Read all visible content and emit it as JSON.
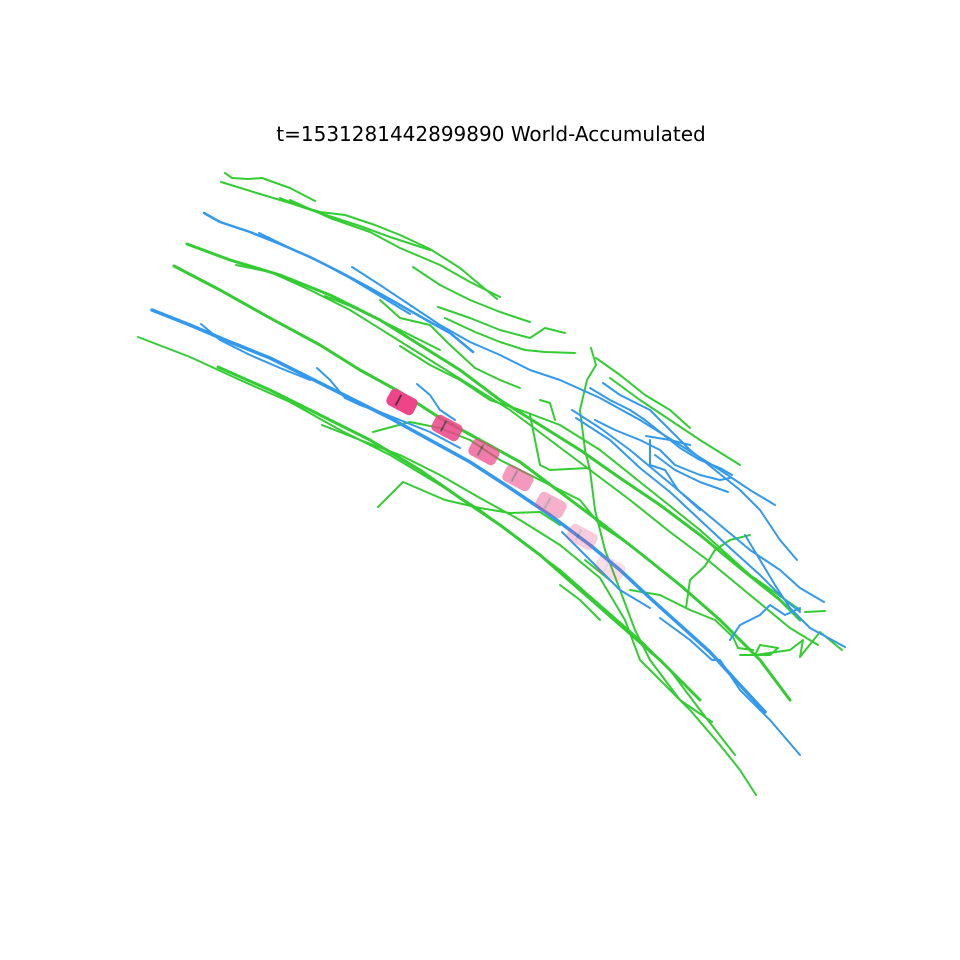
{
  "title": "t=1531281442899890  World-Accumulated",
  "colors": {
    "background": "#ffffff",
    "blue_lines": "#3399ee",
    "green_lines": "#33cc33",
    "vehicle": "#ee4488"
  }
}
